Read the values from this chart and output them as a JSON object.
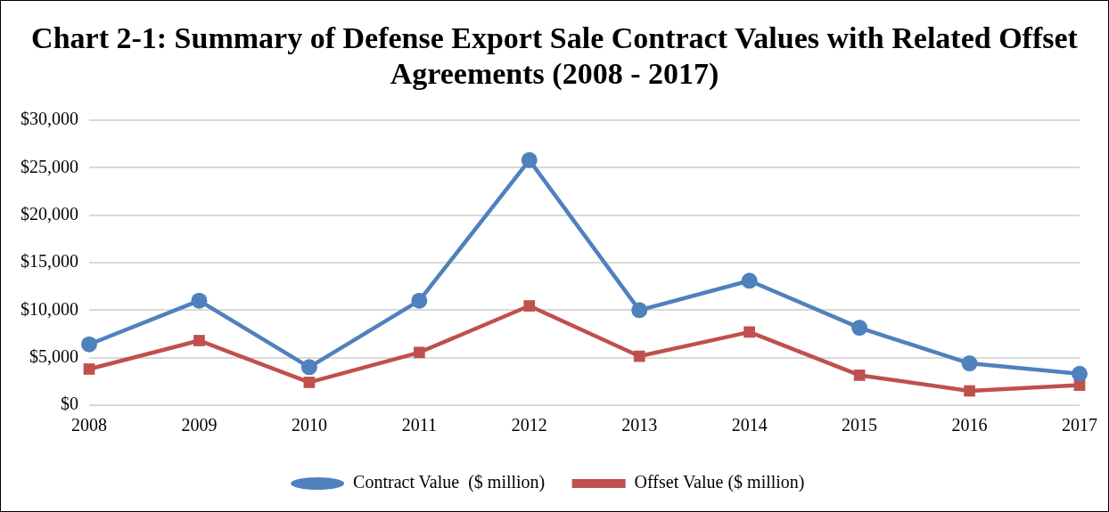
{
  "chart_data": {
    "type": "line",
    "title": "Chart 2-1: Summary of Defense Export Sale Contract Values with Related Offset Agreements (2008 - 2017)",
    "categories": [
      "2008",
      "2009",
      "2010",
      "2011",
      "2012",
      "2013",
      "2014",
      "2015",
      "2016",
      "2017"
    ],
    "series": [
      {
        "name": "Contract Value  ($ million)",
        "color": "#4f81bd",
        "marker": "circle",
        "values": [
          6400,
          11000,
          4000,
          11000,
          25800,
          10000,
          13100,
          8150,
          4400,
          3300
        ]
      },
      {
        "name": "Offset Value ($ million)",
        "color": "#c0504d",
        "marker": "square",
        "values": [
          3800,
          6800,
          2400,
          5550,
          10450,
          5150,
          7700,
          3150,
          1500,
          2100
        ]
      }
    ],
    "ylim": [
      0,
      30000
    ],
    "yticks": [
      {
        "value": 0,
        "label": "$0"
      },
      {
        "value": 5000,
        "label": "$5,000"
      },
      {
        "value": 10000,
        "label": "$10,000"
      },
      {
        "value": 15000,
        "label": "$15,000"
      },
      {
        "value": 20000,
        "label": "$20,000"
      },
      {
        "value": 25000,
        "label": "$25,000"
      },
      {
        "value": 30000,
        "label": "$30,000"
      }
    ],
    "grid": "y",
    "legend": "bottom",
    "line_style": "solid"
  }
}
